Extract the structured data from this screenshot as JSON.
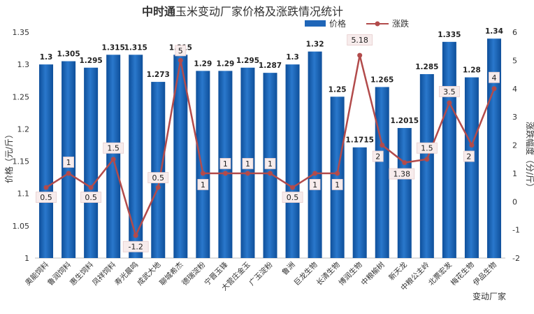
{
  "chart_data": {
    "type": "bar",
    "title_bold": "中时通",
    "title_rest": "玉米变动厂家价格及涨跌情况统计",
    "ylabel_left": "价格（元/斤）",
    "ylabel_right": "涨跌幅度（分/斤）",
    "xlabel": "变动厂家",
    "ylim_left": [
      1,
      1.35
    ],
    "ylim_right": [
      -2,
      6
    ],
    "yticks_left": [
      "1",
      "1.05",
      "1.1",
      "1.15",
      "1.2",
      "1.25",
      "1.3",
      "1.35"
    ],
    "yticks_right": [
      "-2",
      "-1",
      "0",
      "1",
      "2",
      "3",
      "4",
      "5",
      "6"
    ],
    "categories": [
      "奥能饲料",
      "鲁润饲料",
      "惠生饲料",
      "凤祥饲料",
      "寿光晨鸣",
      "成武大地",
      "聊城希杰",
      "德瑞淀粉",
      "宁晋玉锋",
      "大营庄金玉",
      "广玉淀粉",
      "鲁洲",
      "巨龙生物",
      "长清生物",
      "博润生物",
      "中粮榆树",
      "新天龙",
      "中粮公主岭",
      "北票宏发",
      "梅花生物",
      "伊品生物"
    ],
    "series": [
      {
        "name": "价格",
        "kind": "bar",
        "axis": "left",
        "color": "#1f66b8",
        "values": [
          1.3,
          1.305,
          1.295,
          1.315,
          1.315,
          1.273,
          1.315,
          1.29,
          1.29,
          1.295,
          1.287,
          1.3,
          1.32,
          1.25,
          1.1715,
          1.265,
          1.2015,
          1.285,
          1.335,
          1.28,
          1.34
        ],
        "labels": [
          "1.3",
          "1.305",
          "1.295",
          "1.315",
          "1.315",
          "1.273",
          "1.315",
          "1.29",
          "1.29",
          "1.295",
          "1.287",
          "1.3",
          "1.32",
          "1.25",
          "1.1715",
          "1.265",
          "1.2015",
          "1.285",
          "1.335",
          "1.28",
          "1.34"
        ]
      },
      {
        "name": "涨跌",
        "kind": "line",
        "axis": "right",
        "color": "#b24b4b",
        "values": [
          0.5,
          1,
          0.5,
          1.5,
          -1.2,
          0.5,
          5,
          1,
          1,
          1,
          1,
          0.5,
          1,
          1,
          5.18,
          2,
          1.38,
          1.5,
          3.5,
          2,
          4
        ],
        "labels": [
          "0.5",
          "1",
          "0.5",
          "1.5",
          "-1.2",
          "0.5",
          "5",
          "1",
          "1",
          "1",
          "1",
          "0.5",
          "1",
          "1",
          "5.18",
          "2",
          "1.38",
          "1.5",
          "3.5",
          "2",
          "4"
        ]
      }
    ],
    "legend_position": "top-right",
    "grid": false
  }
}
